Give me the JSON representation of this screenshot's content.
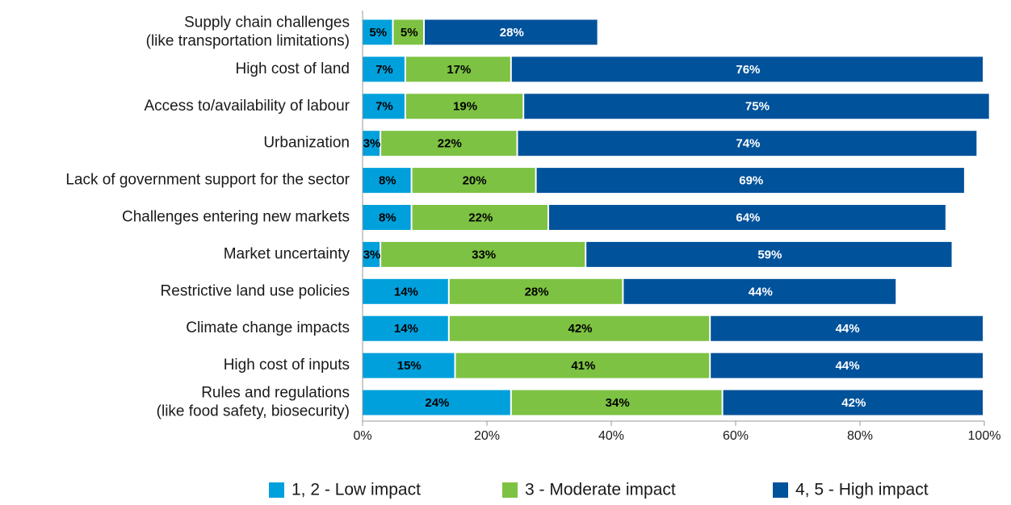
{
  "chart_data": {
    "type": "bar",
    "orientation": "horizontal",
    "stacked": true,
    "categories": [
      "Supply chain challenges\n(like transportation limitations)",
      "High cost of land",
      "Access to/availability of labour",
      "Urbanization",
      "Lack of government support for the sector",
      "Challenges entering new markets",
      "Market uncertainty",
      "Restrictive land use policies",
      "Climate change impacts",
      "High cost of inputs",
      "Rules and regulations\n(like food safety, biosecurity)"
    ],
    "series": [
      {
        "name": "1, 2 - Low impact",
        "color": "#00a0dc",
        "label_color": "#000000",
        "values": [
          5,
          7,
          7,
          3,
          8,
          8,
          3,
          14,
          14,
          15,
          24
        ],
        "value_labels": [
          "5%",
          "7%",
          "7%",
          "3%",
          "8%",
          "8%",
          "3%",
          "14%",
          "14%",
          "15%",
          "24%"
        ]
      },
      {
        "name": "3 - Moderate impact",
        "color": "#7dc242",
        "label_color": "#000000",
        "values": [
          5,
          17,
          19,
          22,
          20,
          22,
          33,
          28,
          42,
          41,
          34
        ],
        "value_labels": [
          "5%",
          "17%",
          "19%",
          "22%",
          "20%",
          "22%",
          "33%",
          "28%",
          "42%",
          "41%",
          "34%"
        ]
      },
      {
        "name": "4, 5 - High impact",
        "color": "#00529b",
        "label_color": "#ffffff",
        "values": [
          28,
          76,
          75,
          74,
          69,
          64,
          59,
          44,
          44,
          44,
          42
        ],
        "value_labels": [
          "28%",
          "76%",
          "75%",
          "74%",
          "69%",
          "64%",
          "59%",
          "44%",
          "44%",
          "44%",
          "42%"
        ]
      }
    ],
    "xlim": [
      0,
      100
    ],
    "xticks": [
      {
        "value": 0,
        "label": "0%"
      },
      {
        "value": 20,
        "label": "20%"
      },
      {
        "value": 40,
        "label": "40%"
      },
      {
        "value": 60,
        "label": "60%"
      },
      {
        "value": 80,
        "label": "80%"
      },
      {
        "value": 100,
        "label": "100%"
      }
    ],
    "grid": false,
    "legend": "bottom"
  }
}
